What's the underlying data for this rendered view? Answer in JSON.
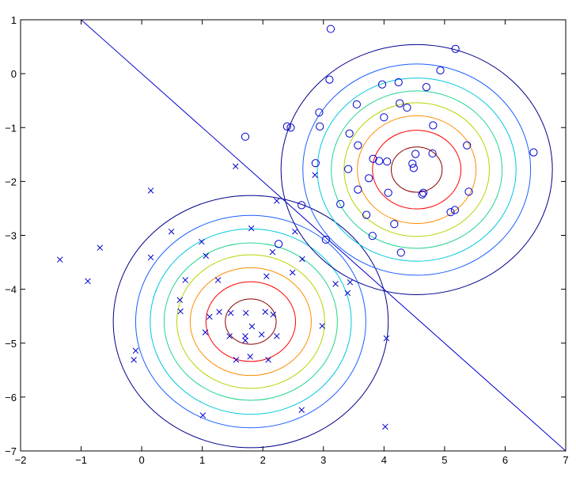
{
  "chart_data": {
    "type": "scatter",
    "title": "",
    "xlabel": "",
    "ylabel": "",
    "xlim": [
      -2,
      7
    ],
    "ylim": [
      -7,
      1
    ],
    "xticks": [
      -2,
      -1,
      0,
      1,
      2,
      3,
      4,
      5,
      6,
      7
    ],
    "yticks": [
      -7,
      -6,
      -5,
      -4,
      -3,
      -2,
      -1,
      0,
      1
    ],
    "grid": false,
    "legend": "none",
    "series": [
      {
        "marker": "o",
        "color": "#0000cc",
        "points": [
          [
            3.12,
            0.83
          ],
          [
            5.18,
            0.46
          ],
          [
            3.1,
            -0.11
          ],
          [
            3.97,
            -0.2
          ],
          [
            4.24,
            -0.16
          ],
          [
            4.7,
            -0.25
          ],
          [
            4.93,
            0.06
          ],
          [
            4.26,
            -0.55
          ],
          [
            4.38,
            -0.63
          ],
          [
            3.55,
            -0.57
          ],
          [
            4.0,
            -0.81
          ],
          [
            2.93,
            -0.72
          ],
          [
            2.4,
            -0.98
          ],
          [
            2.46,
            -1.0
          ],
          [
            1.71,
            -1.17
          ],
          [
            2.94,
            -0.98
          ],
          [
            3.43,
            -1.11
          ],
          [
            4.81,
            -0.96
          ],
          [
            3.57,
            -1.33
          ],
          [
            3.82,
            -1.58
          ],
          [
            3.92,
            -1.62
          ],
          [
            4.05,
            -1.63
          ],
          [
            4.52,
            -1.49
          ],
          [
            4.47,
            -1.67
          ],
          [
            4.49,
            -1.75
          ],
          [
            4.8,
            -1.48
          ],
          [
            5.37,
            -1.33
          ],
          [
            6.47,
            -1.46
          ],
          [
            2.87,
            -1.66
          ],
          [
            3.41,
            -1.77
          ],
          [
            3.57,
            -2.15
          ],
          [
            3.75,
            -1.94
          ],
          [
            4.07,
            -2.21
          ],
          [
            4.63,
            -2.24
          ],
          [
            4.65,
            -2.21
          ],
          [
            5.4,
            -2.19
          ],
          [
            2.64,
            -2.44
          ],
          [
            3.28,
            -2.42
          ],
          [
            3.71,
            -2.62
          ],
          [
            4.17,
            -2.79
          ],
          [
            5.1,
            -2.57
          ],
          [
            5.17,
            -2.53
          ],
          [
            3.04,
            -3.08
          ],
          [
            3.81,
            -3.01
          ],
          [
            2.26,
            -3.16
          ],
          [
            4.28,
            -3.32
          ]
        ]
      },
      {
        "marker": "x",
        "color": "#0000cc",
        "points": [
          [
            1.55,
            -1.72
          ],
          [
            0.15,
            -2.17
          ],
          [
            2.86,
            -1.88
          ],
          [
            2.23,
            -2.36
          ],
          [
            0.49,
            -2.93
          ],
          [
            -0.69,
            -3.23
          ],
          [
            -1.35,
            -3.45
          ],
          [
            1.81,
            -2.87
          ],
          [
            2.53,
            -2.93
          ],
          [
            0.99,
            -3.12
          ],
          [
            2.16,
            -3.31
          ],
          [
            1.06,
            -3.38
          ],
          [
            0.15,
            -3.41
          ],
          [
            2.65,
            -3.44
          ],
          [
            2.49,
            -3.69
          ],
          [
            2.06,
            -3.76
          ],
          [
            -0.89,
            -3.85
          ],
          [
            0.72,
            -3.83
          ],
          [
            1.26,
            -3.83
          ],
          [
            3.2,
            -3.9
          ],
          [
            3.44,
            -3.87
          ],
          [
            3.4,
            -4.07
          ],
          [
            0.63,
            -4.2
          ],
          [
            0.64,
            -4.41
          ],
          [
            1.12,
            -4.51
          ],
          [
            1.28,
            -4.42
          ],
          [
            1.47,
            -4.44
          ],
          [
            1.72,
            -4.44
          ],
          [
            2.04,
            -4.42
          ],
          [
            2.17,
            -4.47
          ],
          [
            1.82,
            -4.69
          ],
          [
            1.05,
            -4.8
          ],
          [
            1.45,
            -4.87
          ],
          [
            1.71,
            -4.87
          ],
          [
            1.71,
            -4.95
          ],
          [
            1.98,
            -4.84
          ],
          [
            2.23,
            -4.87
          ],
          [
            2.98,
            -4.68
          ],
          [
            1.79,
            -5.25
          ],
          [
            1.56,
            -5.31
          ],
          [
            2.09,
            -5.31
          ],
          [
            -0.1,
            -5.14
          ],
          [
            -0.13,
            -5.31
          ],
          [
            4.04,
            -4.91
          ],
          [
            2.64,
            -6.24
          ],
          [
            1.01,
            -6.34
          ],
          [
            4.02,
            -6.55
          ]
        ]
      }
    ],
    "decision_boundary": {
      "x": [
        -1,
        7
      ],
      "y": [
        1,
        -7
      ]
    },
    "contours": [
      {
        "center": [
          1.8,
          -4.6
        ],
        "levels": [
          {
            "rx": 0.42,
            "ry": 0.42,
            "color": "#8b0000"
          },
          {
            "rx": 0.74,
            "ry": 0.74,
            "color": "#ff0000"
          },
          {
            "rx": 1.0,
            "ry": 1.0,
            "color": "#ff8c00"
          },
          {
            "rx": 1.22,
            "ry": 1.24,
            "color": "#b5d400"
          },
          {
            "rx": 1.43,
            "ry": 1.46,
            "color": "#22d48a"
          },
          {
            "rx": 1.66,
            "ry": 1.72,
            "color": "#00c8e0"
          },
          {
            "rx": 1.9,
            "ry": 1.97,
            "color": "#1a5fff"
          },
          {
            "rx": 2.27,
            "ry": 2.34,
            "color": "#00008b"
          }
        ]
      },
      {
        "center": [
          4.54,
          -1.78
        ],
        "levels": [
          {
            "rx": 0.42,
            "ry": 0.42,
            "color": "#8b0000"
          },
          {
            "rx": 0.73,
            "ry": 0.73,
            "color": "#ff0000"
          },
          {
            "rx": 0.98,
            "ry": 1.0,
            "color": "#ff8c00"
          },
          {
            "rx": 1.2,
            "ry": 1.24,
            "color": "#b5d400"
          },
          {
            "rx": 1.41,
            "ry": 1.46,
            "color": "#22d48a"
          },
          {
            "rx": 1.64,
            "ry": 1.7,
            "color": "#00c8e0"
          },
          {
            "rx": 1.88,
            "ry": 1.96,
            "color": "#1a5fff"
          },
          {
            "rx": 2.24,
            "ry": 2.32,
            "color": "#00008b"
          }
        ]
      }
    ]
  }
}
